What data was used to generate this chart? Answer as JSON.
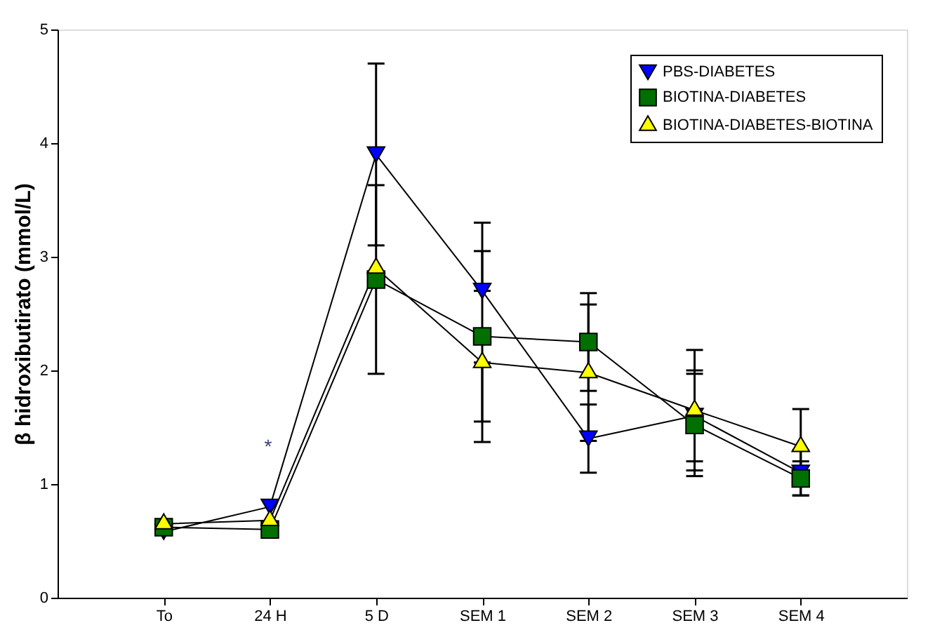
{
  "chart_data": {
    "type": "line",
    "ylabel": "β hidroxibutirato (mmol/L)",
    "categories": [
      "To",
      "24 H",
      "5 D",
      "SEM 1",
      "SEM 2",
      "SEM 3",
      "SEM 4"
    ],
    "ylim": [
      0,
      5
    ],
    "yticks": [
      0,
      1,
      2,
      3,
      4,
      5
    ],
    "grid": false,
    "legend": "top right",
    "series": [
      {
        "name": "PBS-DIABETES",
        "color": "#0000ff",
        "marker": "triangle-down",
        "values": [
          0.58,
          0.8,
          3.9,
          2.7,
          1.4,
          1.6,
          1.1
        ],
        "errors": [
          null,
          null,
          0.8,
          [
            2.7,
            3.3
          ],
          0.3,
          0.4,
          0.2
        ]
      },
      {
        "name": "BIOTINA-DIABETES",
        "color": "#007000",
        "marker": "square",
        "values": [
          0.62,
          0.6,
          2.8,
          2.3,
          2.25,
          1.52,
          1.05
        ],
        "errors": [
          null,
          null,
          0.83,
          0.75,
          0.43,
          0.45,
          0.15
        ]
      },
      {
        "name": "BIOTINA-DIABETES-BIOTINA",
        "color": "#ffff00",
        "marker": "triangle",
        "values": [
          0.65,
          0.68,
          2.9,
          2.07,
          1.98,
          1.65,
          1.33
        ],
        "errors": [
          null,
          null,
          null,
          [
            1.37,
            2.07
          ],
          0.6,
          0.53,
          0.33
        ]
      }
    ],
    "annotations": [
      "*"
    ]
  }
}
